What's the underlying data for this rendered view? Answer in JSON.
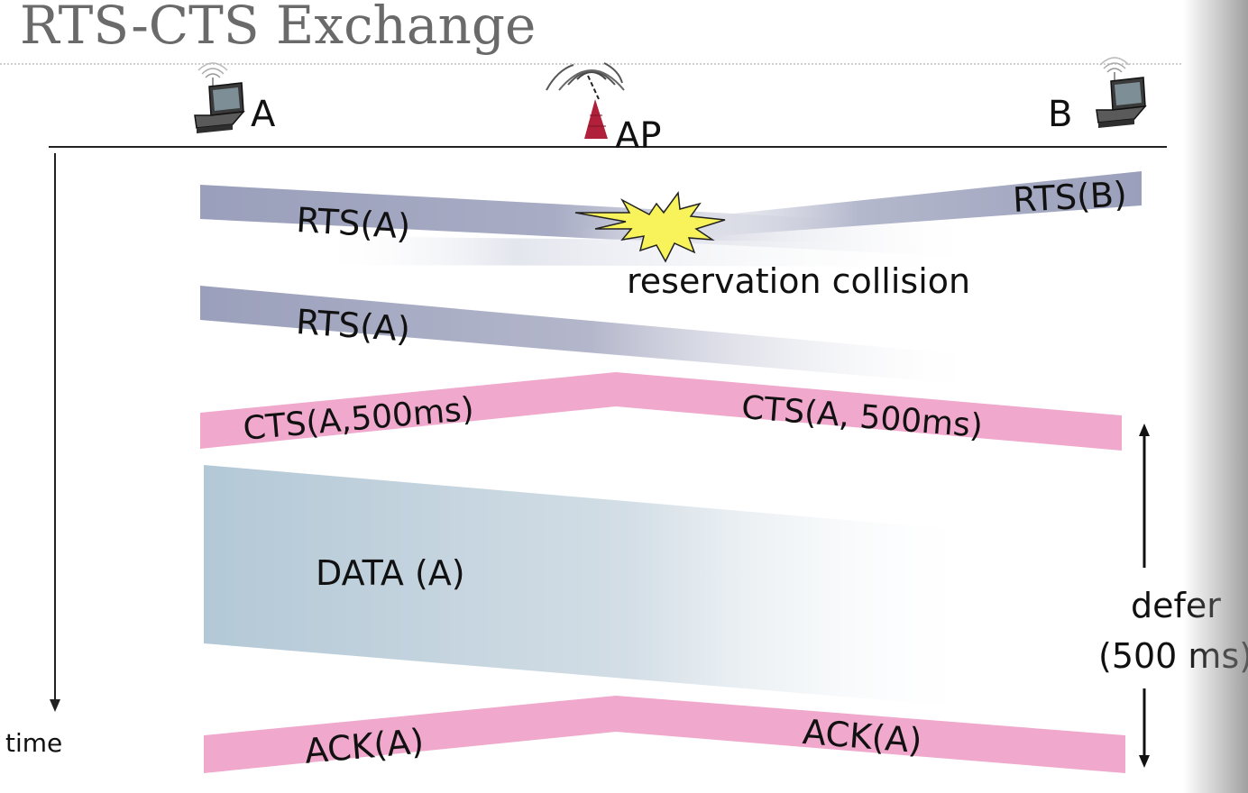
{
  "title": "RTS-CTS Exchange",
  "nodes": {
    "a": "A",
    "ap": "AP",
    "b": "B"
  },
  "frames": {
    "rts_a_first": "RTS(A)",
    "rts_b": "RTS(B)",
    "collision": "reservation collision",
    "rts_a_second": "RTS(A)",
    "cts_left": "CTS(A,500ms)",
    "cts_right": "CTS(A, 500ms)",
    "data": "DATA (A)",
    "ack_left": "ACK(A)",
    "ack_right": "ACK(A)"
  },
  "axis": {
    "time": "time"
  },
  "defer": {
    "line1": "defer",
    "line2": "(500 ms)"
  },
  "icons": {
    "station_a": "laptop-icon",
    "access_point": "access-point-icon",
    "station_b": "laptop-icon",
    "collision": "explosion-icon"
  },
  "colors": {
    "rts_band": "#9a9fbb",
    "cts_ack_band": "#f0a8cc",
    "data_band": "#b3c8d6",
    "collision_star": "#f8f35a",
    "ap_tower": "#b0203a"
  }
}
